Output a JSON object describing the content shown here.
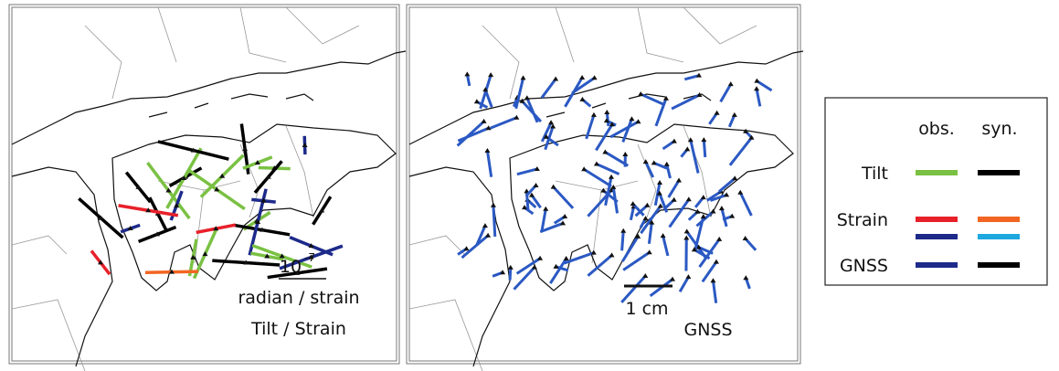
{
  "left_panel": {
    "scale_base": "10",
    "scale_exponent": "-7",
    "scale_unit": "radian / strain",
    "label": "Tilt / Strain"
  },
  "right_panel": {
    "scale_label": "1 cm",
    "label": "GNSS"
  },
  "legend": {
    "columns": [
      "obs.",
      "syn."
    ],
    "rows": [
      "Tilt",
      "Strain",
      "GNSS"
    ]
  }
}
